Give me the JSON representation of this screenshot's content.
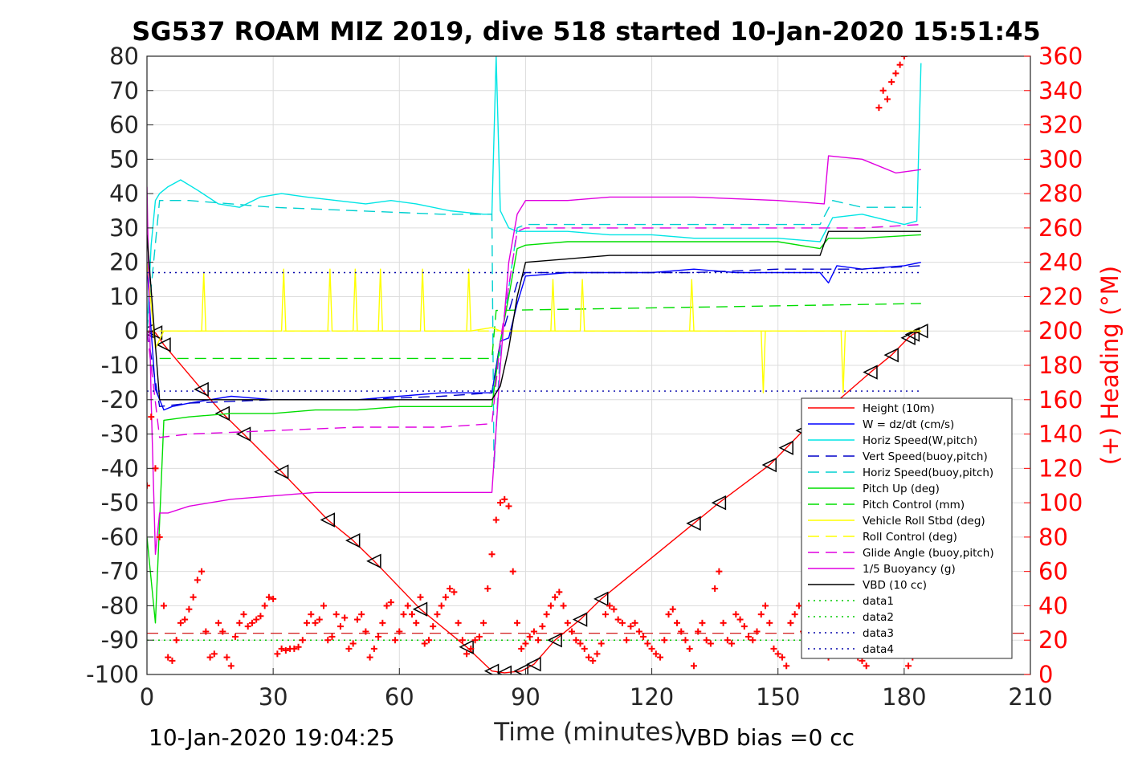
{
  "chart_data": {
    "type": "line",
    "title": "SG537 ROAM MIZ 2019, dive 518 started 10-Jan-2020 15:51:45",
    "xlabel": "Time (minutes)",
    "ylabel_right": "(+) Heading (°M)",
    "footer_left": "10-Jan-2020 19:04:25",
    "footer_right": "VBD bias =0 cc",
    "xlim": [
      0,
      210
    ],
    "ylim": [
      -100,
      80
    ],
    "ylim_right": [
      0,
      360
    ],
    "x_ticks": [
      0,
      30,
      60,
      90,
      120,
      150,
      180,
      210
    ],
    "y_ticks": [
      80,
      70,
      60,
      50,
      40,
      30,
      20,
      10,
      0,
      -10,
      -20,
      -30,
      -40,
      -50,
      -60,
      -70,
      -80,
      -90,
      -100
    ],
    "y_ticks_right": [
      360,
      340,
      320,
      300,
      280,
      260,
      240,
      220,
      200,
      180,
      160,
      140,
      120,
      100,
      80,
      60,
      40,
      20,
      0
    ],
    "grid": true,
    "legend_position": "lower-right",
    "legend": [
      {
        "label": "Height (10m)",
        "color": "#ff0000",
        "dash": "solid"
      },
      {
        "label": "W = dz/dt (cm/s)",
        "color": "#0000ff",
        "dash": "solid"
      },
      {
        "label": "Horiz Speed(W,pitch)",
        "color": "#00e5e5",
        "dash": "solid"
      },
      {
        "label": "Vert Speed(buoy,pitch)",
        "color": "#0000c8",
        "dash": "long"
      },
      {
        "label": "Horiz Speed(buoy,pitch)",
        "color": "#00d0d0",
        "dash": "long"
      },
      {
        "label": "Pitch Up (deg)",
        "color": "#00dd00",
        "dash": "solid"
      },
      {
        "label": "Pitch Control (mm)",
        "color": "#00dd00",
        "dash": "long"
      },
      {
        "label": "Vehicle Roll Stbd (deg)",
        "color": "#ffff00",
        "dash": "solid"
      },
      {
        "label": "Roll Control (deg)",
        "color": "#ffff00",
        "dash": "long"
      },
      {
        "label": "Glide Angle (buoy,pitch)",
        "color": "#e000e0",
        "dash": "long"
      },
      {
        "label": "1/5 Buoyancy (g)",
        "color": "#e000e0",
        "dash": "solid"
      },
      {
        "label": "VBD (10 cc)",
        "color": "#000000",
        "dash": "solid"
      },
      {
        "label": "data1",
        "color": "#00cc00",
        "dash": "dot"
      },
      {
        "label": "data2",
        "color": "#00cc00",
        "dash": "dot"
      },
      {
        "label": "data3",
        "color": "#0000aa",
        "dash": "dot"
      },
      {
        "label": "data4",
        "color": "#0000aa",
        "dash": "dot"
      }
    ],
    "series": [
      {
        "name": "Height (10m)",
        "color": "#ff0000",
        "dash": "solid",
        "marker": "triangle",
        "x": [
          0,
          2,
          4,
          13,
          18,
          23,
          32,
          43,
          49,
          54,
          65,
          76,
          82,
          85,
          89,
          92,
          97,
          103,
          108,
          130,
          136,
          148,
          152,
          156,
          172,
          177,
          181,
          182,
          184
        ],
        "y": [
          0,
          -0.5,
          -4,
          -17,
          -24,
          -30,
          -41,
          -55,
          -61,
          -67,
          -81,
          -92,
          -99,
          -99.5,
          -99,
          -97,
          -90,
          -84,
          -78,
          -56,
          -50,
          -39,
          -34,
          -29,
          -12,
          -7,
          -2,
          -1,
          0
        ]
      },
      {
        "name": "W = dz/dt (cm/s)",
        "color": "#0000ff",
        "dash": "solid",
        "x": [
          0,
          1,
          2,
          4,
          6,
          10,
          20,
          30,
          40,
          50,
          60,
          70,
          80,
          82,
          84,
          86,
          88,
          90,
          100,
          110,
          120,
          130,
          140,
          150,
          160,
          162,
          164,
          170,
          180,
          184
        ],
        "y": [
          20,
          0,
          -17,
          -23,
          -22,
          -21,
          -19,
          -20,
          -20,
          -20,
          -19,
          -18,
          -18,
          -18,
          -3,
          -2,
          8,
          16,
          17,
          17,
          17,
          18,
          17,
          17,
          17,
          14,
          19,
          18,
          19,
          20
        ]
      },
      {
        "name": "Horiz Speed(W,pitch)",
        "color": "#00e5e5",
        "dash": "solid",
        "x": [
          0,
          1,
          2,
          3,
          5,
          8,
          12,
          17,
          22,
          27,
          32,
          38,
          45,
          52,
          58,
          64,
          72,
          80,
          82,
          83,
          84,
          86,
          88,
          90,
          100,
          110,
          120,
          130,
          140,
          150,
          160,
          163,
          170,
          180,
          183,
          184
        ],
        "y": [
          0,
          25,
          38,
          40,
          42,
          44,
          41,
          37,
          36,
          39,
          40,
          39,
          38,
          37,
          38,
          37,
          35,
          34,
          34,
          80,
          35,
          30,
          29,
          29,
          29,
          28,
          28,
          27,
          27,
          27,
          26,
          33,
          34,
          31,
          32,
          78
        ]
      },
      {
        "name": "Vert Speed(buoy,pitch)",
        "color": "#0000c8",
        "dash": "long",
        "x": [
          0,
          3,
          10,
          30,
          50,
          70,
          82,
          84,
          88,
          90,
          110,
          130,
          150,
          170,
          184
        ],
        "y": [
          0,
          -22,
          -21,
          -20,
          -20,
          -19,
          -18,
          -3,
          14,
          17,
          17,
          17,
          18,
          18,
          19
        ]
      },
      {
        "name": "Horiz Speed(buoy,pitch)",
        "color": "#00d0d0",
        "dash": "long",
        "x": [
          0,
          3,
          10,
          30,
          50,
          70,
          82,
          82.5,
          84,
          88,
          90,
          110,
          130,
          150,
          160,
          163,
          170,
          184
        ],
        "y": [
          0,
          38,
          38,
          36,
          35,
          34,
          34,
          -40,
          -5,
          30,
          31,
          31,
          31,
          31,
          31,
          38,
          36,
          36
        ]
      },
      {
        "name": "Pitch Up (deg)",
        "color": "#00dd00",
        "dash": "solid",
        "x": [
          0,
          2,
          4,
          10,
          20,
          30,
          40,
          50,
          60,
          70,
          82,
          84,
          86,
          88,
          90,
          100,
          110,
          120,
          130,
          140,
          150,
          160,
          162,
          170,
          184
        ],
        "y": [
          -60,
          -85,
          -26,
          -25,
          -24,
          -24,
          -23,
          -23,
          -22,
          -22,
          -22,
          -3,
          10,
          24,
          25,
          26,
          26,
          26,
          26,
          26,
          26,
          24,
          27,
          27,
          28
        ]
      },
      {
        "name": "Pitch Control (mm)",
        "color": "#00dd00",
        "dash": "long",
        "x": [
          3,
          82,
          83,
          184
        ],
        "y": [
          -8,
          -8,
          6,
          8
        ]
      },
      {
        "name": "Vehicle Roll Stbd (deg)",
        "color": "#ffff00",
        "dash": "solid",
        "x": [
          0,
          2,
          4,
          13,
          13.5,
          14,
          20,
          32,
          32.5,
          33,
          40,
          43,
          43.5,
          44,
          49,
          49.5,
          50,
          55,
          55.5,
          56,
          65,
          65.5,
          66,
          76,
          76.5,
          77,
          82,
          84,
          88,
          90,
          96,
          96.5,
          97,
          103,
          103.5,
          104,
          120,
          129,
          129.5,
          130,
          140,
          146,
          146.5,
          147,
          160,
          165,
          165.5,
          166,
          184
        ],
        "y": [
          20,
          -5,
          0,
          0,
          17,
          0,
          0,
          0,
          18,
          0,
          0,
          0,
          18,
          0,
          0,
          18,
          0,
          0,
          18,
          0,
          0,
          18,
          0,
          0,
          18,
          0,
          1,
          0,
          0,
          0,
          0,
          15,
          0,
          0,
          15,
          0,
          0,
          0,
          15,
          0,
          0,
          0,
          -18,
          0,
          0,
          0,
          -18,
          0,
          0
        ]
      },
      {
        "name": "Roll Control (deg)",
        "color": "#ffff00",
        "dash": "long",
        "x": [
          3,
          184
        ],
        "y": [
          0,
          0
        ]
      },
      {
        "name": "Glide Angle (buoy,pitch)",
        "color": "#e000e0",
        "dash": "long",
        "x": [
          0,
          3,
          10,
          30,
          50,
          70,
          82,
          84,
          88,
          90,
          110,
          130,
          150,
          170,
          184
        ],
        "y": [
          0,
          -31,
          -30,
          -29,
          -28,
          -28,
          -27,
          -3,
          29,
          30,
          30,
          30,
          30,
          30,
          31
        ]
      },
      {
        "name": "1/5 Buoyancy (g)",
        "color": "#e000e0",
        "dash": "solid",
        "x": [
          0,
          1,
          2,
          3,
          5,
          10,
          20,
          30,
          40,
          50,
          60,
          70,
          82,
          84,
          86,
          88,
          90,
          100,
          110,
          130,
          150,
          161,
          162,
          170,
          178,
          184
        ],
        "y": [
          42,
          -20,
          -65,
          -53,
          -53,
          -51,
          -49,
          -48,
          -47,
          -47,
          -47,
          -47,
          -47,
          -10,
          20,
          34,
          38,
          38,
          39,
          39,
          38,
          37,
          51,
          50,
          46,
          47
        ]
      },
      {
        "name": "VBD (10 cc)",
        "color": "#000000",
        "dash": "solid",
        "x": [
          0,
          3,
          10,
          82,
          84,
          86,
          88,
          90,
          100,
          110,
          130,
          160,
          162,
          184
        ],
        "y": [
          28,
          -20,
          -20,
          -20,
          -16,
          -5,
          10,
          20,
          21,
          22,
          22,
          22,
          29,
          29
        ]
      },
      {
        "name": "data1",
        "color": "#00cc00",
        "dash": "dot",
        "x": [
          0,
          184
        ],
        "y": [
          -90,
          -90
        ]
      },
      {
        "name": "data2",
        "color": "#00cc00",
        "dash": "dot",
        "x": [
          0,
          184
        ],
        "y": [
          -90,
          -90
        ]
      },
      {
        "name": "data3",
        "color": "#0000aa",
        "dash": "dot",
        "x": [
          0,
          184
        ],
        "y": [
          17,
          17
        ]
      },
      {
        "name": "data4",
        "color": "#0000aa",
        "dash": "dot",
        "x": [
          0,
          184
        ],
        "y": [
          -17.5,
          -17.5
        ]
      }
    ],
    "heading_ref": {
      "color": "#cc0000",
      "dash": "long",
      "value_deg": 24
    },
    "heading": {
      "name": "(+) Heading (°M)",
      "color": "#ff0000",
      "marker": "+",
      "x": [
        0,
        1,
        2,
        3,
        4,
        5,
        6,
        7,
        8,
        9,
        10,
        11,
        12,
        13,
        14,
        15,
        16,
        17,
        18,
        19,
        20,
        21,
        22,
        23,
        24,
        25,
        26,
        27,
        28,
        29,
        30,
        31,
        32,
        33,
        34,
        35,
        36,
        37,
        38,
        39,
        40,
        41,
        42,
        43,
        44,
        45,
        46,
        47,
        48,
        49,
        50,
        51,
        52,
        53,
        54,
        55,
        56,
        57,
        58,
        59,
        60,
        61,
        62,
        63,
        64,
        65,
        66,
        67,
        68,
        69,
        70,
        71,
        72,
        73,
        74,
        75,
        76,
        77,
        78,
        79,
        80,
        81,
        82,
        83,
        84,
        85,
        86,
        87,
        88,
        89,
        90,
        91,
        92,
        93,
        94,
        95,
        96,
        97,
        98,
        99,
        100,
        101,
        102,
        103,
        104,
        105,
        106,
        107,
        108,
        109,
        110,
        111,
        112,
        113,
        114,
        115,
        116,
        117,
        118,
        119,
        120,
        121,
        122,
        123,
        124,
        125,
        126,
        127,
        128,
        129,
        130,
        131,
        132,
        133,
        134,
        135,
        136,
        137,
        138,
        139,
        140,
        141,
        142,
        143,
        144,
        145,
        146,
        147,
        148,
        149,
        150,
        151,
        152,
        153,
        154,
        155,
        156,
        157,
        158,
        159,
        160,
        161,
        162,
        163,
        164,
        165,
        166,
        167,
        168,
        169,
        170,
        171,
        172,
        173,
        174,
        175,
        176,
        177,
        178,
        179,
        180,
        181,
        182
      ],
      "y": [
        110,
        150,
        120,
        80,
        40,
        10,
        8,
        20,
        30,
        32,
        38,
        45,
        55,
        60,
        25,
        10,
        12,
        30,
        25,
        10,
        5,
        22,
        30,
        35,
        28,
        30,
        32,
        34,
        40,
        45,
        44,
        12,
        15,
        14,
        15,
        15,
        16,
        20,
        30,
        35,
        30,
        32,
        40,
        20,
        22,
        35,
        28,
        33,
        15,
        18,
        32,
        35,
        25,
        10,
        15,
        22,
        30,
        40,
        42,
        20,
        25,
        35,
        40,
        35,
        30,
        45,
        18,
        20,
        28,
        35,
        40,
        45,
        50,
        48,
        30,
        20,
        12,
        15,
        20,
        22,
        30,
        50,
        70,
        90,
        100,
        102,
        98,
        60,
        30,
        15,
        18,
        22,
        25,
        20,
        28,
        35,
        40,
        45,
        48,
        40,
        30,
        25,
        20,
        18,
        15,
        10,
        8,
        12,
        18,
        35,
        40,
        38,
        32,
        30,
        20,
        28,
        30,
        25,
        22,
        18,
        15,
        12,
        10,
        20,
        35,
        38,
        30,
        25,
        20,
        15,
        5,
        25,
        30,
        20,
        18,
        50,
        60,
        30,
        20,
        18,
        35,
        32,
        28,
        22,
        20,
        25,
        35,
        40,
        30,
        15,
        12,
        10,
        5,
        30,
        35,
        40,
        25,
        20,
        18,
        15,
        12,
        15,
        10,
        25,
        30,
        28,
        20,
        18,
        15,
        10,
        8,
        5,
        12,
        20,
        330,
        340,
        335,
        345,
        350,
        355,
        360,
        5,
        10
      ]
    }
  }
}
